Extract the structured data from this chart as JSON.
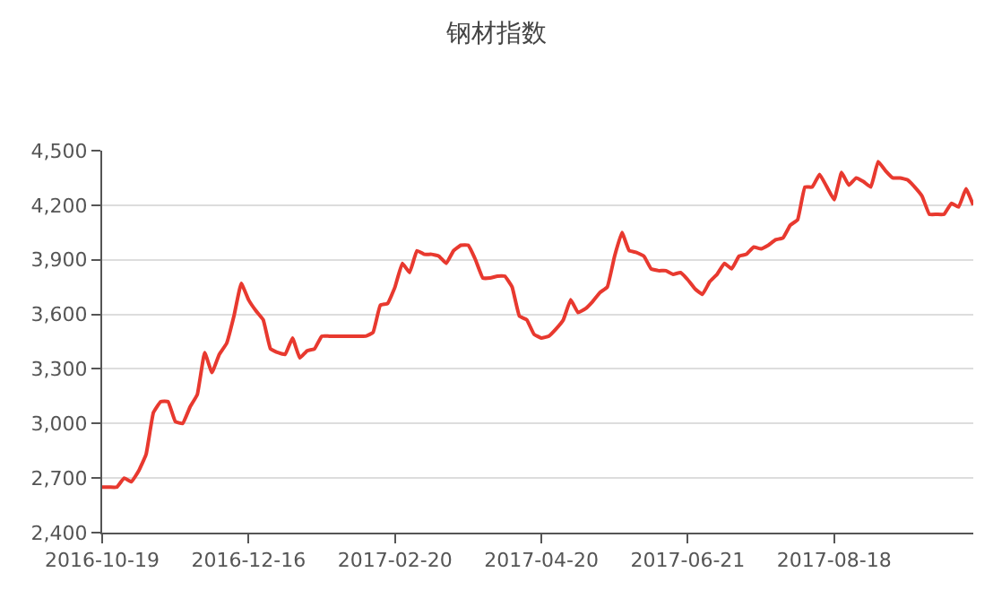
{
  "chart_data": {
    "type": "line",
    "title": "钢材指数",
    "categories": [
      "2016-10-19",
      null,
      null,
      null,
      null,
      null,
      null,
      null,
      null,
      null,
      null,
      null,
      null,
      null,
      null,
      null,
      null,
      null,
      null,
      null,
      "2016-12-16",
      null,
      null,
      null,
      null,
      null,
      null,
      null,
      null,
      null,
      null,
      null,
      null,
      null,
      null,
      null,
      null,
      null,
      null,
      null,
      "2017-02-20",
      null,
      null,
      null,
      null,
      null,
      null,
      null,
      null,
      null,
      null,
      null,
      null,
      null,
      null,
      null,
      null,
      null,
      null,
      null,
      "2017-04-20",
      null,
      null,
      null,
      null,
      null,
      null,
      null,
      null,
      null,
      null,
      null,
      null,
      null,
      null,
      null,
      null,
      null,
      null,
      null,
      "2017-06-21",
      null,
      null,
      null,
      null,
      null,
      null,
      null,
      null,
      null,
      null,
      null,
      null,
      null,
      null,
      null,
      null,
      null,
      null,
      null,
      "2017-08-18",
      null,
      null,
      null,
      null,
      null,
      null,
      null,
      null,
      null,
      null,
      null,
      null,
      null,
      null,
      null,
      null,
      null,
      null,
      null
    ],
    "series": [
      {
        "color": "#e8392f",
        "values": [
          2650,
          2650,
          2650,
          2700,
          2680,
          2740,
          2830,
          3060,
          3120,
          3120,
          3010,
          3000,
          3090,
          3160,
          3390,
          3280,
          3380,
          3440,
          3590,
          3770,
          3680,
          3620,
          3570,
          3410,
          3390,
          3380,
          3470,
          3360,
          3400,
          3410,
          3480,
          3480,
          3480,
          3480,
          3480,
          3480,
          3480,
          3500,
          3650,
          3660,
          3750,
          3880,
          3830,
          3950,
          3930,
          3930,
          3920,
          3880,
          3950,
          3980,
          3980,
          3900,
          3800,
          3800,
          3810,
          3810,
          3750,
          3590,
          3570,
          3490,
          3470,
          3480,
          3520,
          3570,
          3680,
          3610,
          3630,
          3670,
          3720,
          3750,
          3920,
          4050,
          3950,
          3940,
          3920,
          3850,
          3840,
          3840,
          3820,
          3830,
          3790,
          3740,
          3710,
          3780,
          3820,
          3880,
          3850,
          3920,
          3930,
          3970,
          3960,
          3980,
          4010,
          4020,
          4090,
          4120,
          4300,
          4300,
          4370,
          4300,
          4230,
          4380,
          4310,
          4350,
          4330,
          4300,
          4440,
          4390,
          4350,
          4350,
          4340,
          4300,
          4250,
          4150,
          4150,
          4150,
          4210,
          4190,
          4290,
          4200
        ]
      }
    ],
    "ylim": [
      2400,
      4500
    ],
    "yticks": [
      {
        "value": 2400,
        "label": "2,400"
      },
      {
        "value": 2700,
        "label": "2,700"
      },
      {
        "value": 3000,
        "label": "3,000"
      },
      {
        "value": 3300,
        "label": "3,300"
      },
      {
        "value": 3600,
        "label": "3,600"
      },
      {
        "value": 3900,
        "label": "3,900"
      },
      {
        "value": 4200,
        "label": "4,200"
      },
      {
        "value": 4500,
        "label": "4,500"
      }
    ],
    "grid": "y",
    "line_style": "solid"
  }
}
